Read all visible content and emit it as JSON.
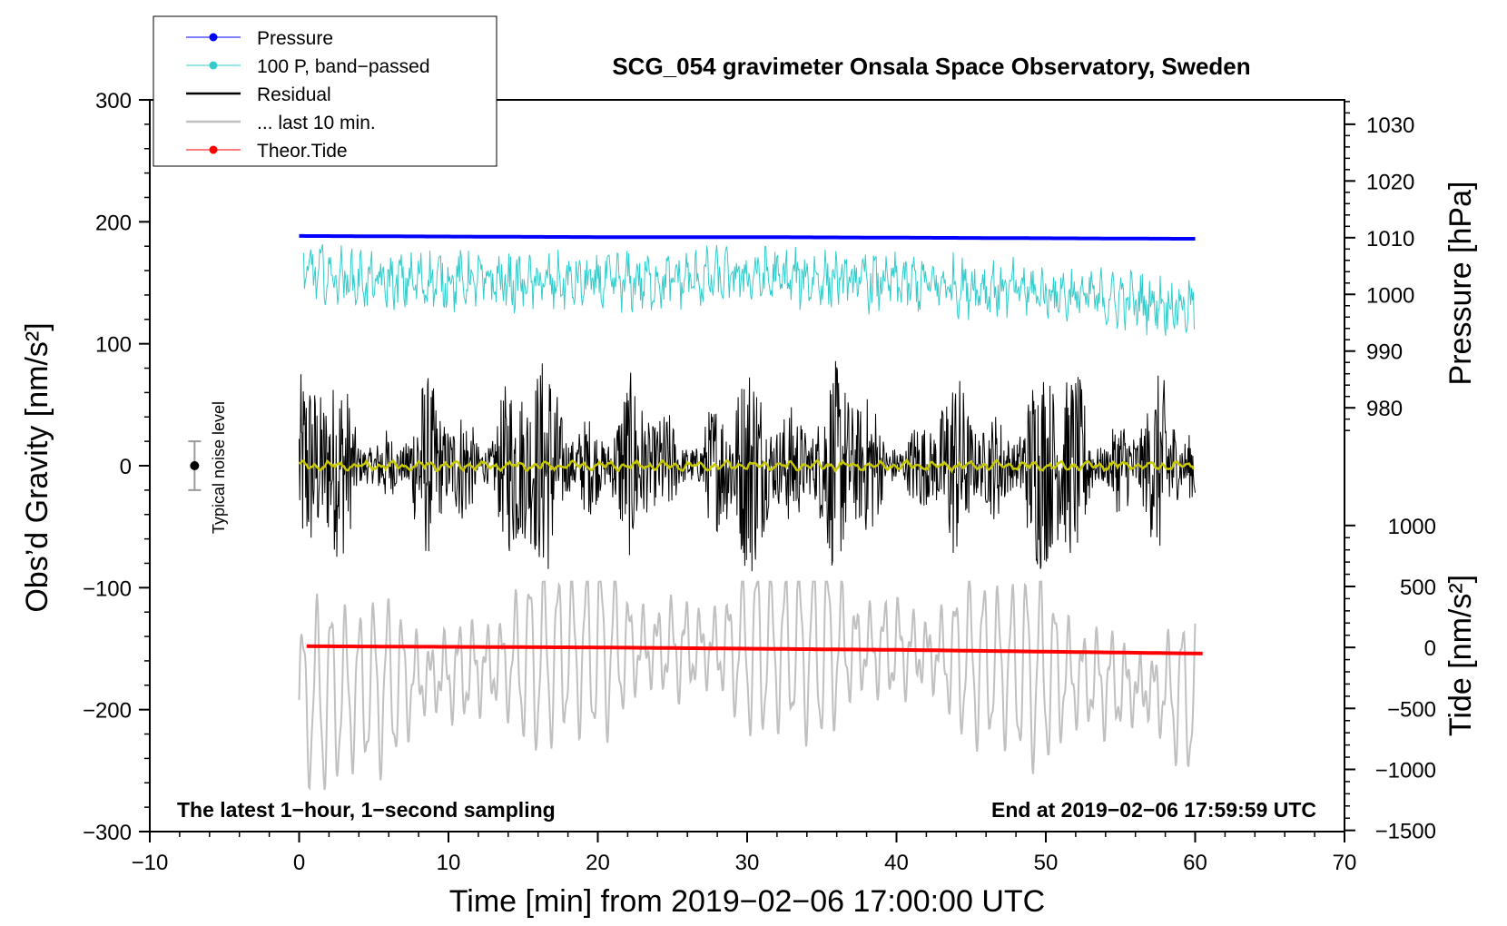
{
  "chart_data": {
    "type": "line",
    "title": "SCG_054 gravimeter Onsala Space Observatory, Sweden",
    "xlabel": "Time [min] from 2019−02−06 17:00:00 UTC",
    "ylabel_left": "Obs’d Gravity [nm/s²]",
    "ylabel_right_top": "Pressure [hPa]",
    "ylabel_right_bottom": "Tide [nm/s²]",
    "xlim": [
      -10,
      70
    ],
    "ylim_left": [
      -300,
      300
    ],
    "x_ticks": [
      {
        "value": -10,
        "label": "−10"
      },
      {
        "value": 0,
        "label": "0"
      },
      {
        "value": 10,
        "label": "10"
      },
      {
        "value": 20,
        "label": "20"
      },
      {
        "value": 30,
        "label": "30"
      },
      {
        "value": 40,
        "label": "40"
      },
      {
        "value": 50,
        "label": "50"
      },
      {
        "value": 60,
        "label": "60"
      },
      {
        "value": 70,
        "label": "70"
      }
    ],
    "y_left_ticks": [
      {
        "value": 300,
        "label": "300"
      },
      {
        "value": 200,
        "label": "200"
      },
      {
        "value": 100,
        "label": "100"
      },
      {
        "value": 0,
        "label": "0"
      },
      {
        "value": -100,
        "label": "−100"
      },
      {
        "value": -200,
        "label": "−200"
      },
      {
        "value": -300,
        "label": "−300"
      }
    ],
    "pressure_axis": {
      "hpa_ref": 1010,
      "ref_gravity": 187,
      "gravity_per_hpa": 4.65,
      "ticks": [
        {
          "value": 1030,
          "label": "1030"
        },
        {
          "value": 1020,
          "label": "1020"
        },
        {
          "value": 1010,
          "label": "1010"
        },
        {
          "value": 1000,
          "label": "1000"
        },
        {
          "value": 990,
          "label": "990"
        },
        {
          "value": 980,
          "label": "980"
        }
      ]
    },
    "tide_axis": {
      "ref_gravity": -149,
      "gravity_per_nm": 0.1,
      "ticks": [
        {
          "value": 1000,
          "label": "1000"
        },
        {
          "value": 500,
          "label": "500"
        },
        {
          "value": 0,
          "label": "0"
        },
        {
          "value": -500,
          "label": "−500"
        },
        {
          "value": -1000,
          "label": "−1000"
        },
        {
          "value": -1500,
          "label": "−1500"
        }
      ]
    },
    "series": [
      {
        "name": "Pressure",
        "color": "#0000ff",
        "x": [
          0,
          10,
          20,
          30,
          40,
          50,
          60
        ],
        "pressure_hpa": [
          1010.3,
          1010.2,
          1010.1,
          1010.1,
          1010.0,
          1009.9,
          1009.8
        ]
      },
      {
        "name": "100 P, band−passed",
        "color": "#33cccc",
        "x": [
          0,
          5,
          10,
          15,
          20,
          25,
          30,
          35,
          40,
          45,
          50,
          55,
          60
        ],
        "gravity": [
          160,
          150,
          152,
          150,
          150,
          152,
          155,
          153,
          150,
          147,
          142,
          136,
          130
        ]
      },
      {
        "name": "Residual",
        "color": "#000000",
        "x": [
          0,
          10,
          20,
          30,
          40,
          50,
          60
        ],
        "gravity": [
          0,
          0,
          0,
          0,
          0,
          0,
          0
        ]
      },
      {
        "name": "... last 10 min.",
        "color": "#c0c0c0",
        "x": [
          0,
          20,
          40,
          60
        ],
        "gravity": [
          -232,
          -190,
          -190,
          -230
        ]
      },
      {
        "name": "Theor.Tide",
        "color": "#ff0000",
        "x": [
          0,
          20,
          40,
          60.5
        ],
        "tide_nm": [
          10,
          0,
          -20,
          -50
        ]
      }
    ],
    "legend_position": "top-left",
    "noise": {
      "label": "Typical noise level",
      "x": -7,
      "center": 0,
      "half_range": 20
    },
    "note_left": "The latest 1−hour, 1−second sampling",
    "note_right": "End at 2019−02−06 17:59:59 UTC"
  }
}
